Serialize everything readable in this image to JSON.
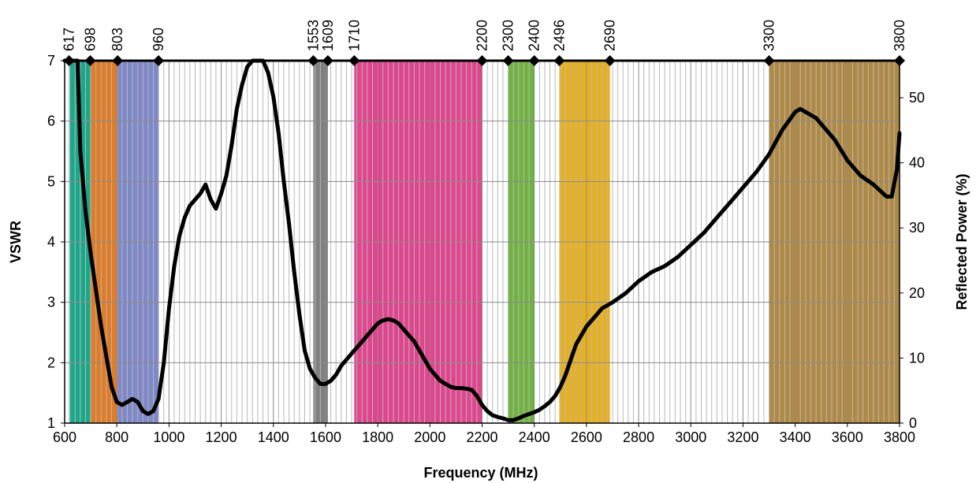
{
  "chart_data": {
    "type": "line",
    "title": "",
    "xlabel": "Frequency (MHz)",
    "ylabel": "VSWR",
    "y2label": "Reflected Power (%)",
    "xlim": [
      600,
      3800
    ],
    "ylim": [
      1,
      7
    ],
    "y2lim": [
      0,
      55.7
    ],
    "x_ticks": [
      600,
      800,
      1000,
      1200,
      1400,
      1600,
      1800,
      2000,
      2200,
      2400,
      2600,
      2800,
      3000,
      3200,
      3400,
      3600,
      3800
    ],
    "y_ticks": [
      1,
      2,
      3,
      4,
      5,
      6,
      7
    ],
    "y2_ticks": [
      0,
      10,
      20,
      30,
      40,
      50
    ],
    "grid": true,
    "legend": "none",
    "band_markers": [
      617,
      698,
      803,
      960,
      1553,
      1609,
      1710,
      2200,
      2300,
      2400,
      2496,
      2690,
      3300,
      3800
    ],
    "bands": [
      {
        "start": 617,
        "end": 698,
        "color": "#1aa88a"
      },
      {
        "start": 698,
        "end": 803,
        "color": "#e07b26"
      },
      {
        "start": 803,
        "end": 960,
        "color": "#7f88c8"
      },
      {
        "start": 1553,
        "end": 1609,
        "color": "#808080"
      },
      {
        "start": 1710,
        "end": 2200,
        "color": "#e0458e"
      },
      {
        "start": 2300,
        "end": 2400,
        "color": "#71b341"
      },
      {
        "start": 2496,
        "end": 2690,
        "color": "#e6b020"
      },
      {
        "start": 3300,
        "end": 3800,
        "color": "#b08a45"
      }
    ],
    "series": [
      {
        "color": "#000000",
        "x": [
          600,
          650,
          660,
          680,
          700,
          720,
          740,
          760,
          780,
          800,
          820,
          840,
          860,
          880,
          900,
          920,
          940,
          960,
          980,
          1000,
          1020,
          1040,
          1060,
          1080,
          1100,
          1120,
          1140,
          1160,
          1180,
          1200,
          1220,
          1240,
          1260,
          1280,
          1300,
          1320,
          1340,
          1360,
          1380,
          1400,
          1420,
          1440,
          1460,
          1480,
          1500,
          1520,
          1540,
          1560,
          1580,
          1600,
          1620,
          1640,
          1660,
          1680,
          1700,
          1720,
          1740,
          1760,
          1780,
          1800,
          1820,
          1840,
          1860,
          1880,
          1900,
          1920,
          1940,
          1960,
          1980,
          2000,
          2020,
          2040,
          2060,
          2080,
          2100,
          2120,
          2140,
          2160,
          2180,
          2200,
          2220,
          2240,
          2260,
          2280,
          2300,
          2320,
          2340,
          2360,
          2380,
          2400,
          2420,
          2440,
          2460,
          2480,
          2500,
          2520,
          2540,
          2560,
          2580,
          2600,
          2620,
          2640,
          2660,
          2680,
          2700,
          2750,
          2800,
          2850,
          2900,
          2950,
          3000,
          3050,
          3100,
          3150,
          3200,
          3250,
          3300,
          3350,
          3400,
          3420,
          3440,
          3460,
          3480,
          3500,
          3550,
          3600,
          3650,
          3700,
          3750,
          3770,
          3790,
          3800
        ],
        "y": [
          7.0,
          7.0,
          5.5,
          4.5,
          3.8,
          3.2,
          2.6,
          2.1,
          1.6,
          1.35,
          1.3,
          1.35,
          1.4,
          1.35,
          1.2,
          1.15,
          1.2,
          1.4,
          2.0,
          2.9,
          3.6,
          4.1,
          4.4,
          4.6,
          4.7,
          4.8,
          4.95,
          4.7,
          4.55,
          4.8,
          5.1,
          5.6,
          6.2,
          6.6,
          6.9,
          7.0,
          7.0,
          7.0,
          6.8,
          6.4,
          5.8,
          5.0,
          4.3,
          3.5,
          2.8,
          2.2,
          1.9,
          1.75,
          1.65,
          1.65,
          1.7,
          1.8,
          1.95,
          2.05,
          2.15,
          2.25,
          2.35,
          2.45,
          2.55,
          2.65,
          2.7,
          2.72,
          2.7,
          2.65,
          2.55,
          2.45,
          2.35,
          2.2,
          2.05,
          1.9,
          1.8,
          1.7,
          1.65,
          1.6,
          1.58,
          1.58,
          1.57,
          1.55,
          1.45,
          1.3,
          1.2,
          1.13,
          1.1,
          1.08,
          1.05,
          1.05,
          1.08,
          1.12,
          1.15,
          1.18,
          1.22,
          1.28,
          1.35,
          1.45,
          1.6,
          1.8,
          2.05,
          2.3,
          2.45,
          2.6,
          2.7,
          2.8,
          2.9,
          2.95,
          3.0,
          3.15,
          3.35,
          3.5,
          3.6,
          3.75,
          3.95,
          4.15,
          4.4,
          4.65,
          4.9,
          5.15,
          5.45,
          5.85,
          6.15,
          6.2,
          6.15,
          6.1,
          6.05,
          5.95,
          5.7,
          5.35,
          5.1,
          4.95,
          4.75,
          4.75,
          5.2,
          5.8
        ]
      }
    ]
  }
}
